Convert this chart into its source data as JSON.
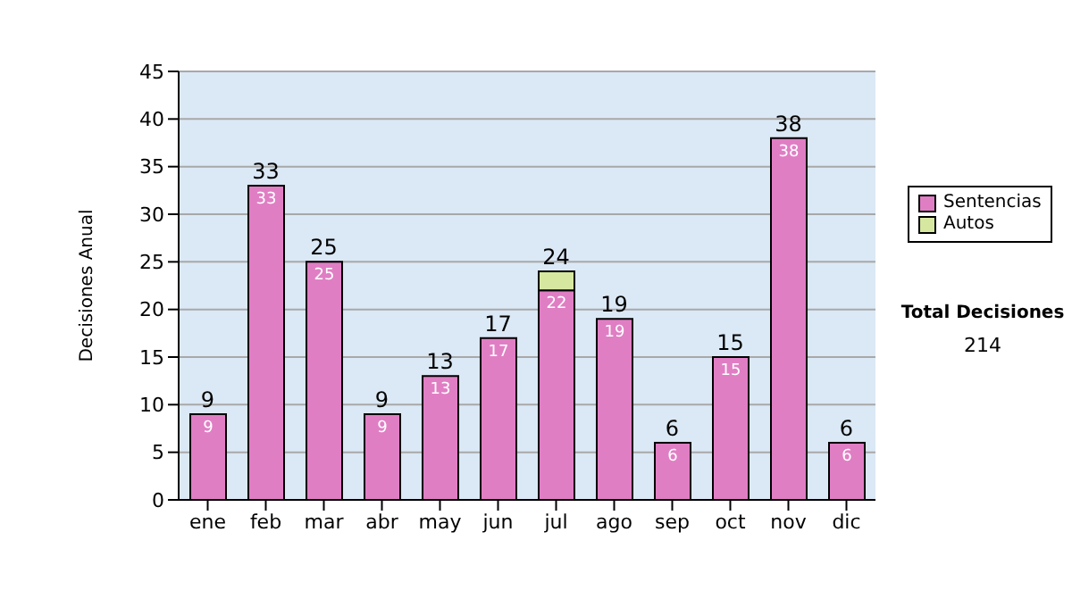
{
  "chart_data": {
    "type": "bar",
    "stacked": true,
    "ylabel": "Decisiones Anual",
    "categories": [
      "ene",
      "feb",
      "mar",
      "abr",
      "may",
      "jun",
      "jul",
      "ago",
      "sep",
      "oct",
      "nov",
      "dic"
    ],
    "series": [
      {
        "name": "Sentencias",
        "color": "#e07ec4",
        "values": [
          9,
          33,
          25,
          9,
          13,
          17,
          22,
          19,
          6,
          15,
          38,
          6
        ],
        "value_labels": [
          "9",
          "33",
          "25",
          "9",
          "13",
          "17",
          "22",
          "19",
          "6",
          "15",
          "38",
          "6"
        ]
      },
      {
        "name": "Autos",
        "color": "#d6e8a0",
        "values": [
          0,
          0,
          0,
          0,
          0,
          0,
          2,
          0,
          0,
          0,
          0,
          0
        ]
      }
    ],
    "totals": [
      "9",
      "33",
      "25",
      "9",
      "13",
      "17",
      "24",
      "19",
      "6",
      "15",
      "38",
      "6"
    ],
    "ylim": [
      0,
      45
    ],
    "yticks": [
      0,
      5,
      10,
      15,
      20,
      25,
      30,
      35,
      40,
      45
    ],
    "grid": "y",
    "legend": "right",
    "annotations": [
      "Total Decisiones",
      "214"
    ]
  }
}
